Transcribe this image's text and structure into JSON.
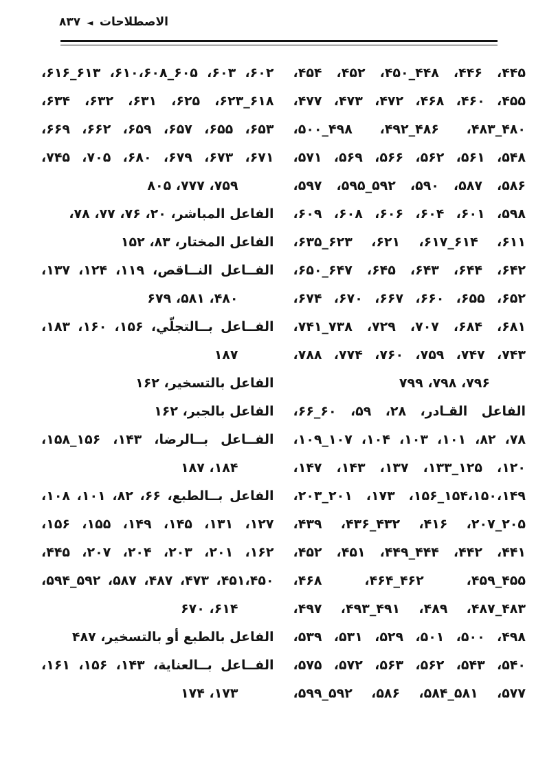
{
  "page": {
    "header": {
      "title": "الاصطلاحات",
      "separator_icon": "◄",
      "page_number": "۸۳۷"
    },
    "index": {
      "right_column": {
        "lines": [
          {
            "text": "۴۴۵، ۴۴۶، ۴۴۸_۴۵۰، ۴۵۲، ۴۵۴،",
            "align": "justify"
          },
          {
            "text": "۴۵۵، ۴۶۰، ۴۶۸، ۴۷۲، ۴۷۳، ۴۷۷،",
            "align": "justify"
          },
          {
            "text": "۴۸۰_۴۸۳، ۴۸۶_۴۹۲، ۴۹۸_۵۰۰،",
            "align": "justify"
          },
          {
            "text": "۵۴۸، ۵۶۱، ۵۶۲، ۵۶۶، ۵۶۹، ۵۷۱،",
            "align": "justify"
          },
          {
            "text": "۵۸۶، ۵۸۷، ۵۹۰، ۵۹۲_۵۹۵، ۵۹۷،",
            "align": "justify"
          },
          {
            "text": "۵۹۸، ۶۰۱، ۶۰۴، ۶۰۶، ۶۰۸، ۶۰۹،",
            "align": "justify"
          },
          {
            "text": "۶۱۱، ۶۱۴_۶۱۷، ۶۲۱، ۶۲۳_۶۳۵،",
            "align": "justify"
          },
          {
            "text": "۶۴۲، ۶۴۴، ۶۴۳، ۶۴۵، ۶۴۷_۶۵۰،",
            "align": "justify"
          },
          {
            "text": "۶۵۲، ۶۵۵، ۶۶۰، ۶۶۷، ۶۷۰، ۶۷۴،",
            "align": "justify"
          },
          {
            "text": "۶۸۱، ۶۸۴، ۷۰۷، ۷۲۹، ۷۳۸_۷۴۱،",
            "align": "justify"
          },
          {
            "text": "۷۴۳، ۷۴۷، ۷۵۹، ۷۶۰، ۷۷۴، ۷۸۸،",
            "align": "justify"
          },
          {
            "text": "۷۹۶، ۷۹۸، ۷۹۹",
            "align": "end"
          },
          {
            "text": "الفاعل القـادر، ۲۸، ۵۹، ۶۰_۶۶، ۶۸_۷۱،",
            "align": "justify"
          },
          {
            "text": "۷۸، ۸۲، ۱۰۱، ۱۰۳، ۱۰۴، ۱۰۷_۱۰۹،",
            "align": "justify"
          },
          {
            "text": "۱۲۰، ۱۲۵_۱۳۳، ۱۳۷، ۱۴۳، ۱۴۷،",
            "align": "justify"
          },
          {
            "text": "۱۴۹،‏۱۵۰،‏۱۵۴_۱۵۶، ۱۷۳، ۲۰۱_۲۰۳،",
            "align": "justify"
          },
          {
            "text": "۲۰۵_۲۰۷، ۴۱۶، ۴۳۲_۴۳۶، ۴۳۹،",
            "align": "justify"
          },
          {
            "text": "۴۴۱، ۴۴۲، ۴۴۴_۴۴۹، ۴۵۱، ۴۵۲،",
            "align": "justify"
          },
          {
            "text": "۴۵۵_۴۵۹، ۴۶۲_۴۶۴، ۴۶۸،",
            "align": "justify"
          },
          {
            "text": "۴۸۳_۴۸۷، ۴۸۹، ۴۹۱_۴۹۳، ۴۹۷،",
            "align": "justify"
          },
          {
            "text": "۴۹۸، ۵۰۰، ۵۰۱، ۵۲۹، ۵۳۱، ۵۳۹،",
            "align": "justify"
          },
          {
            "text": "۵۴۰، ۵۴۳، ۵۶۲، ۵۶۳، ۵۷۲، ۵۷۵،",
            "align": "justify"
          },
          {
            "text": "۵۷۷، ۵۸۱_۵۸۴، ۵۸۶، ۵۹۲_۵۹۹،",
            "align": "justify"
          }
        ]
      },
      "left_column": {
        "lines": [
          {
            "text": "۶۰۲، ۶۰۳، ۶۰۵_۶۰۸،‏۶۱۰، ۶۱۳_۶۱۶،",
            "align": "justify"
          },
          {
            "text": "۶۱۸_۶۲۳، ۶۲۵، ۶۳۱، ۶۳۲، ۶۳۴،",
            "align": "justify"
          },
          {
            "text": "۶۵۳، ۶۵۵، ۶۵۷، ۶۵۹، ۶۶۲، ۶۶۹،",
            "align": "justify"
          },
          {
            "text": "۶۷۱، ۶۷۳، ۶۷۹، ۶۸۰، ۷۰۵، ۷۴۵،",
            "align": "justify"
          },
          {
            "text": "۷۵۹، ۷۷۷، ۸۰۵",
            "align": "end"
          },
          {
            "text": "الفاعل المباشر، ۲۰، ۷۶، ۷۷، ۷۸، ۷۵۹",
            "align": "start"
          },
          {
            "text": "الفاعل المختار، ۸۳، ۱۵۲",
            "align": "start"
          },
          {
            "text": "الفــاعل النــاقص، ۱۱۹، ۱۲۴، ۱۳۷، ۱۵۶،",
            "align": "justify"
          },
          {
            "text": "۴۸۰، ۵۸۱، ۶۷۹",
            "align": "end"
          },
          {
            "text": "الفــاعل بــالتجلّي، ۱۵۶، ۱۶۰، ۱۸۳، ۱۸۴،",
            "align": "justify"
          },
          {
            "text": "۱۸۷",
            "align": "end"
          },
          {
            "text": "الفاعل بالتسخير، ۱۶۲",
            "align": "start"
          },
          {
            "text": "الفاعل بالجبر، ۱۶۲",
            "align": "start"
          },
          {
            "text": "الفــاعل بــالرضا، ۱۴۳، ۱۵۶_۱۵۸، ۱۶۰،",
            "align": "justify"
          },
          {
            "text": "۱۸۴، ۱۸۷",
            "align": "end"
          },
          {
            "text": "الفاعل بــالطبع، ۶۶، ۸۲، ۱۰۱، ۱۰۸، ۱۲۵،",
            "align": "justify"
          },
          {
            "text": "۱۲۷، ۱۳۱، ۱۴۵، ۱۴۹، ۱۵۵، ۱۵۶،",
            "align": "justify"
          },
          {
            "text": "۱۶۲، ۲۰۱، ۲۰۳، ۲۰۴، ۲۰۷، ۴۴۵،",
            "align": "justify"
          },
          {
            "text": "۴۵۰،‏۴۵۱، ۴۷۳، ۴۸۷، ۵۸۷، ۵۹۲_۵۹۴،",
            "align": "justify"
          },
          {
            "text": "۶۱۴، ۶۷۰",
            "align": "end"
          },
          {
            "text": "الفاعل بالطبع أو بالتسخير، ۴۸۷",
            "align": "start"
          },
          {
            "text": "الفــاعل بــالعناية، ۱۴۳، ۱۵۶، ۱۶۱، ۱۶۳،",
            "align": "justify"
          },
          {
            "text": "۱۷۳، ۱۷۴",
            "align": "end"
          }
        ]
      }
    }
  }
}
